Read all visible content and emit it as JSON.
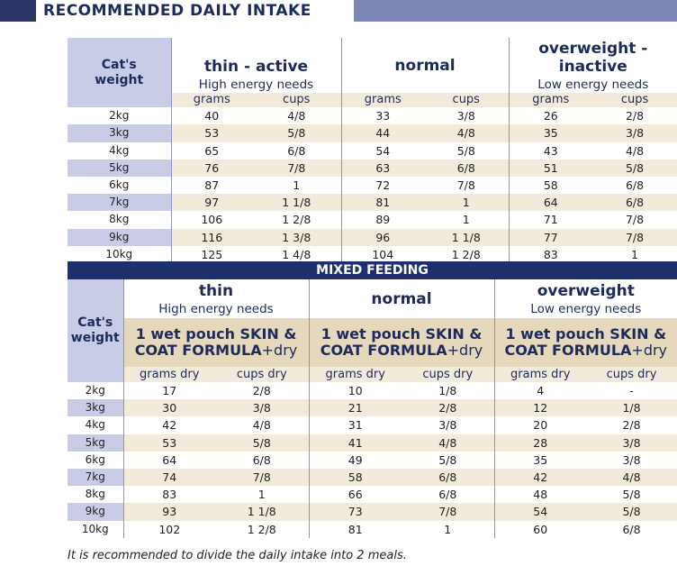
{
  "header": {
    "title": "RECOMMENDED DAILY INTAKE"
  },
  "table1": {
    "weight_header": [
      "Cat's",
      "weight"
    ],
    "groups": [
      {
        "title": "thin - active",
        "subtitle": "High energy needs"
      },
      {
        "title": "normal",
        "subtitle": ""
      },
      {
        "title": "overweight - inactive",
        "subtitle": "Low energy needs"
      }
    ],
    "units": [
      "grams",
      "cups",
      "grams",
      "cups",
      "grams",
      "cups"
    ],
    "rows": [
      {
        "weight": "2kg",
        "values": [
          "40",
          "4/8",
          "33",
          "3/8",
          "26",
          "2/8"
        ]
      },
      {
        "weight": "3kg",
        "values": [
          "53",
          "5/8",
          "44",
          "4/8",
          "35",
          "3/8"
        ]
      },
      {
        "weight": "4kg",
        "values": [
          "65",
          "6/8",
          "54",
          "5/8",
          "43",
          "4/8"
        ]
      },
      {
        "weight": "5kg",
        "values": [
          "76",
          "7/8",
          "63",
          "6/8",
          "51",
          "5/8"
        ]
      },
      {
        "weight": "6kg",
        "values": [
          "87",
          "1",
          "72",
          "7/8",
          "58",
          "6/8"
        ]
      },
      {
        "weight": "7kg",
        "values": [
          "97",
          "1 1/8",
          "81",
          "1",
          "64",
          "6/8"
        ]
      },
      {
        "weight": "8kg",
        "values": [
          "106",
          "1 2/8",
          "89",
          "1",
          "71",
          "7/8"
        ]
      },
      {
        "weight": "9kg",
        "values": [
          "116",
          "1 3/8",
          "96",
          "1 1/8",
          "77",
          "7/8"
        ]
      },
      {
        "weight": "10kg",
        "values": [
          "125",
          "1 4/8",
          "104",
          "1 2/8",
          "83",
          "1"
        ]
      }
    ]
  },
  "table2": {
    "banner": "MIXED FEEDING",
    "weight_header": [
      "Cat's",
      "weight"
    ],
    "groups": [
      {
        "title": "thin",
        "subtitle": "High energy needs",
        "pouch_line1": "1 wet pouch SKIN &",
        "pouch_line2": "COAT FORMULA",
        "pouch_plus": "+dry"
      },
      {
        "title": "normal",
        "subtitle": "",
        "pouch_line1": "1 wet pouch SKIN &",
        "pouch_line2": "COAT FORMULA",
        "pouch_plus": "+dry"
      },
      {
        "title": "overweight",
        "subtitle": "Low energy needs",
        "pouch_line1": "1 wet pouch SKIN &",
        "pouch_line2": "COAT FORMULA",
        "pouch_plus": "+dry"
      }
    ],
    "units": [
      "grams dry",
      "cups dry",
      "grams dry",
      "cups dry",
      "grams dry",
      "cups dry"
    ],
    "rows": [
      {
        "weight": "2kg",
        "values": [
          "17",
          "2/8",
          "10",
          "1/8",
          "4",
          "-"
        ]
      },
      {
        "weight": "3kg",
        "values": [
          "30",
          "3/8",
          "21",
          "2/8",
          "12",
          "1/8"
        ]
      },
      {
        "weight": "4kg",
        "values": [
          "42",
          "4/8",
          "31",
          "3/8",
          "20",
          "2/8"
        ]
      },
      {
        "weight": "5kg",
        "values": [
          "53",
          "5/8",
          "41",
          "4/8",
          "28",
          "3/8"
        ]
      },
      {
        "weight": "6kg",
        "values": [
          "64",
          "6/8",
          "49",
          "5/8",
          "35",
          "3/8"
        ]
      },
      {
        "weight": "7kg",
        "values": [
          "74",
          "7/8",
          "58",
          "6/8",
          "42",
          "4/8"
        ]
      },
      {
        "weight": "8kg",
        "values": [
          "83",
          "1",
          "66",
          "6/8",
          "48",
          "5/8"
        ]
      },
      {
        "weight": "9kg",
        "values": [
          "93",
          "1 1/8",
          "73",
          "7/8",
          "54",
          "5/8"
        ]
      },
      {
        "weight": "10kg",
        "values": [
          "102",
          "1 2/8",
          "81",
          "1",
          "60",
          "6/8"
        ]
      }
    ]
  },
  "footnote": "It is recommended to divide the daily intake into 2 meals.",
  "colors": {
    "navy": "#1e2f6e",
    "lavender": "#c8cce6",
    "beige": "#f2eadb",
    "tan": "#e6d8bd",
    "header_right": "#7c85b4"
  }
}
